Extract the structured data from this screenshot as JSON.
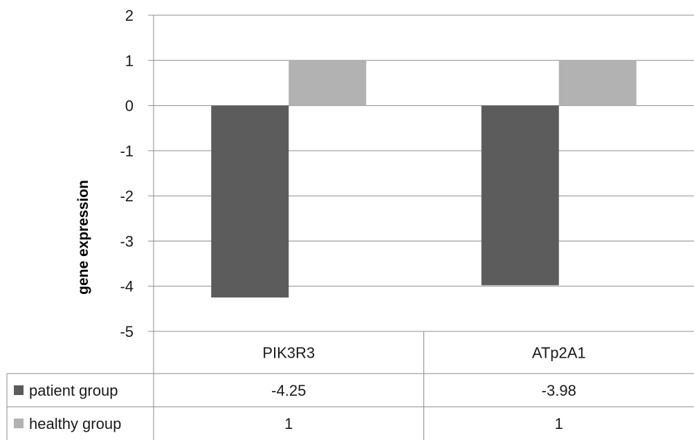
{
  "chart_data": {
    "type": "bar",
    "ylabel": "gene expression",
    "ylim": [
      -5,
      2
    ],
    "yticks": [
      2,
      1,
      0,
      -1,
      -2,
      -3,
      -4,
      -5
    ],
    "grid": true,
    "legend": "data-table",
    "categories": [
      "PIK3R3",
      "ATp2A1"
    ],
    "series": [
      {
        "name": "patient group",
        "values": [
          -4.25,
          -3.98
        ],
        "value_labels": [
          "-4.25",
          "-3.98"
        ],
        "color": "#5c5c5c"
      },
      {
        "name": "healthy group",
        "values": [
          1,
          1
        ],
        "value_labels": [
          "1",
          "1"
        ],
        "color": "#b2b2b2"
      }
    ]
  }
}
